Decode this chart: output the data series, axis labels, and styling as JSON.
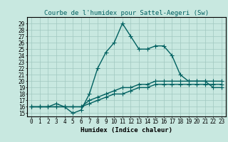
{
  "title": "Courbe de l'humidex pour Sattel-Aegeri (Sw)",
  "xlabel": "Humidex (Indice chaleur)",
  "bg_color": "#c8e8e0",
  "grid_color": "#a0c8c0",
  "line_color": "#006060",
  "xlim": [
    -0.5,
    23.5
  ],
  "ylim": [
    14.5,
    30
  ],
  "xticks": [
    0,
    1,
    2,
    3,
    4,
    5,
    6,
    7,
    8,
    9,
    10,
    11,
    12,
    13,
    14,
    15,
    16,
    17,
    18,
    19,
    20,
    21,
    22,
    23
  ],
  "yticks": [
    15,
    16,
    17,
    18,
    19,
    20,
    21,
    22,
    23,
    24,
    25,
    26,
    27,
    28,
    29
  ],
  "line1_x": [
    0,
    1,
    2,
    3,
    4,
    5,
    6,
    7,
    8,
    9,
    10,
    11,
    12,
    13,
    14,
    15,
    16,
    17,
    18,
    19,
    20,
    21,
    22,
    23
  ],
  "line1_y": [
    16,
    16,
    16,
    16.5,
    16,
    15,
    15.5,
    18,
    22,
    24.5,
    26,
    29,
    27,
    25,
    25,
    25.5,
    25.5,
    24,
    21,
    20,
    20,
    20,
    19,
    19
  ],
  "line2_x": [
    0,
    1,
    2,
    3,
    4,
    5,
    6,
    7,
    8,
    9,
    10,
    11,
    12,
    13,
    14,
    15,
    16,
    17,
    18,
    19,
    20,
    21,
    22,
    23
  ],
  "line2_y": [
    16,
    16,
    16,
    16,
    16,
    16,
    16,
    16.5,
    17,
    17.5,
    18,
    18,
    18.5,
    19,
    19,
    19.5,
    19.5,
    19.5,
    19.5,
    19.5,
    19.5,
    19.5,
    19.5,
    19.5
  ],
  "line3_x": [
    0,
    1,
    2,
    3,
    4,
    5,
    6,
    7,
    8,
    9,
    10,
    11,
    12,
    13,
    14,
    15,
    16,
    17,
    18,
    19,
    20,
    21,
    22,
    23
  ],
  "line3_y": [
    16,
    16,
    16,
    16,
    16,
    16,
    16,
    17,
    17.5,
    18,
    18.5,
    19,
    19,
    19.5,
    19.5,
    20,
    20,
    20,
    20,
    20,
    20,
    20,
    20,
    20
  ],
  "marker_size": 4,
  "line_width": 1.0,
  "title_fontsize": 6.5,
  "tick_fontsize": 5.5,
  "xlabel_fontsize": 6.5
}
